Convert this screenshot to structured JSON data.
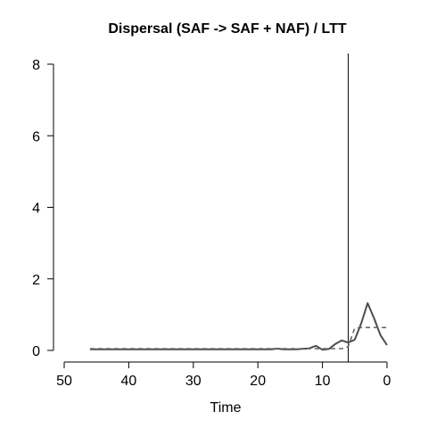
{
  "chart_data": {
    "type": "line",
    "title": "Dispersal (SAF -> SAF + NAF) / LTT",
    "xlabel": "Time",
    "ylabel": "",
    "xlim": [
      50,
      0
    ],
    "ylim": [
      0,
      8
    ],
    "x_ticks": [
      50,
      40,
      30,
      20,
      10,
      0
    ],
    "y_ticks": [
      0,
      2,
      4,
      6,
      8
    ],
    "x_tick_labels": [
      "50",
      "40",
      "30",
      "20",
      "10",
      "0"
    ],
    "y_tick_labels": [
      "0",
      "2",
      "4",
      "6",
      "8"
    ],
    "grid": false,
    "legend": "none",
    "vertical_marker_x": 6,
    "series": [
      {
        "style": "solid",
        "color": "#4d4d4d",
        "x": [
          46,
          44,
          42,
          40,
          38,
          36,
          34,
          32,
          30,
          28,
          26,
          24,
          22,
          20,
          18,
          17,
          16,
          14,
          12,
          11,
          10,
          9,
          8,
          7,
          6.5,
          6,
          5,
          4,
          3,
          2,
          1,
          0
        ],
        "y": [
          0.03,
          0.03,
          0.03,
          0.03,
          0.03,
          0.03,
          0.03,
          0.03,
          0.03,
          0.03,
          0.03,
          0.03,
          0.03,
          0.03,
          0.03,
          0.05,
          0.03,
          0.03,
          0.06,
          0.13,
          0.02,
          0.04,
          0.18,
          0.28,
          0.25,
          0.22,
          0.3,
          0.75,
          1.32,
          0.9,
          0.42,
          0.15
        ]
      },
      {
        "style": "dashed",
        "color": "#666666",
        "x": [
          46,
          40,
          30,
          20,
          10,
          8,
          7,
          6.5,
          6,
          5,
          4,
          3,
          2,
          1,
          0
        ],
        "y": [
          0.05,
          0.05,
          0.05,
          0.05,
          0.05,
          0.05,
          0.05,
          0.06,
          0.12,
          0.62,
          0.64,
          0.64,
          0.64,
          0.64,
          0.64
        ]
      }
    ]
  }
}
